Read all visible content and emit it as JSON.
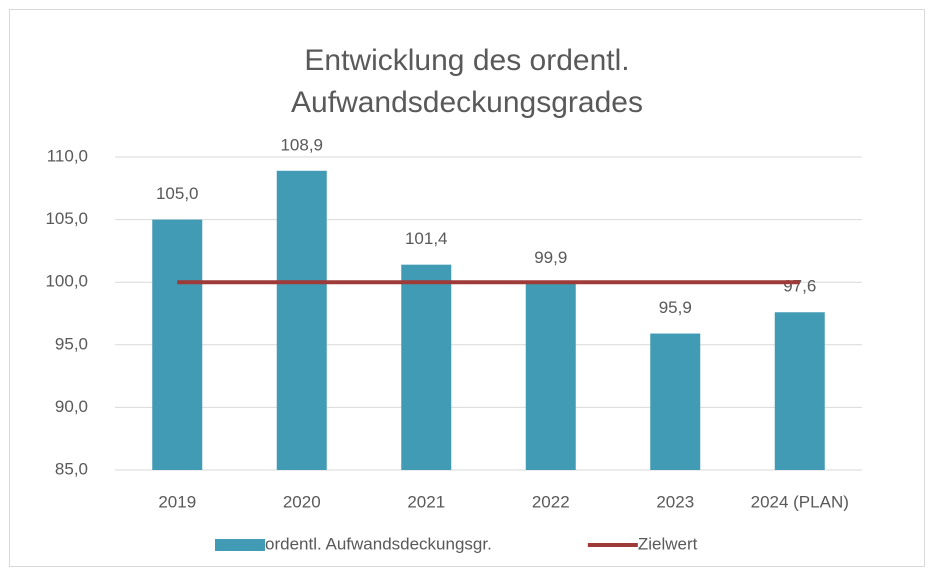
{
  "chart_data": {
    "type": "bar",
    "title": [
      "Entwicklung des ordentl.",
      "Aufwandsdeckungsgrades"
    ],
    "categories": [
      "2019",
      "2020",
      "2021",
      "2022",
      "2023",
      "2024 (PLAN)"
    ],
    "series": [
      {
        "name": "ordentl. Aufwandsdeckungsgr.",
        "type": "bar",
        "color": "#429bb4",
        "values": [
          105.0,
          108.9,
          101.4,
          99.9,
          95.9,
          97.6
        ],
        "value_labels": [
          "105,0",
          "108,9",
          "101,4",
          "99,9",
          "95,9",
          "97,6"
        ]
      },
      {
        "name": "Zielwert",
        "type": "line",
        "color": "#9e3a38",
        "values": [
          100,
          100,
          100,
          100,
          100,
          100
        ]
      }
    ],
    "ylim": [
      85,
      110
    ],
    "yticks": [
      {
        "value": 85,
        "label": "85,0"
      },
      {
        "value": 90,
        "label": "90,0"
      },
      {
        "value": 95,
        "label": "95,0"
      },
      {
        "value": 100,
        "label": "100,0"
      },
      {
        "value": 105,
        "label": "105,0"
      },
      {
        "value": 110,
        "label": "110,0"
      }
    ],
    "grid": true,
    "legend": "bottom"
  }
}
